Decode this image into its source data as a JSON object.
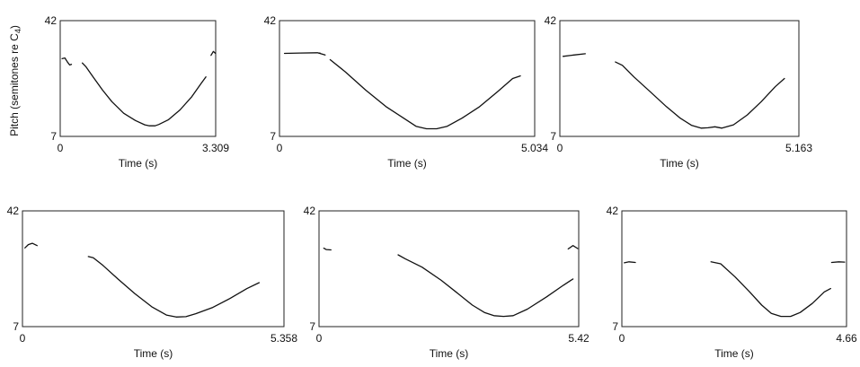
{
  "figure": {
    "ylabel": "Pitch (semitones re C",
    "ylabel_sub": "4",
    "ylabel_tail": ")"
  },
  "chart_data": [
    {
      "type": "line",
      "xlabel": "Time (s)",
      "xlim": [
        0,
        3.309
      ],
      "ylim": [
        7,
        42
      ],
      "x_ticks": [
        "0",
        "3.309"
      ],
      "y_ticks": [
        "7",
        "42"
      ],
      "series": [
        {
          "points": [
            [
              0.04,
              30.5
            ],
            [
              0.1,
              30.7
            ],
            [
              0.15,
              29.6
            ],
            [
              0.2,
              28.6
            ],
            [
              0.24,
              28.8
            ]
          ]
        },
        {
          "points": [
            [
              0.47,
              29.2
            ],
            [
              0.55,
              28.0
            ],
            [
              0.7,
              25.0
            ],
            [
              0.9,
              21.0
            ],
            [
              1.1,
              17.5
            ],
            [
              1.35,
              14.0
            ],
            [
              1.6,
              11.8
            ],
            [
              1.8,
              10.5
            ],
            [
              1.9,
              10.2
            ],
            [
              2.02,
              10.2
            ],
            [
              2.1,
              10.6
            ],
            [
              2.3,
              12.0
            ],
            [
              2.55,
              15.0
            ],
            [
              2.8,
              19.0
            ],
            [
              3.0,
              23.0
            ],
            [
              3.1,
              25.0
            ]
          ]
        },
        {
          "points": [
            [
              3.21,
              31.5
            ],
            [
              3.26,
              32.7
            ],
            [
              3.305,
              32.1
            ]
          ]
        }
      ]
    },
    {
      "type": "line",
      "xlabel": "Time (s)",
      "xlim": [
        0,
        5.034
      ],
      "ylim": [
        7,
        42
      ],
      "x_ticks": [
        "0",
        "5.034"
      ],
      "y_ticks": [
        "7",
        "42"
      ],
      "series": [
        {
          "points": [
            [
              0.1,
              32.1
            ],
            [
              0.4,
              32.2
            ],
            [
              0.75,
              32.3
            ],
            [
              0.9,
              31.6
            ]
          ]
        },
        {
          "points": [
            [
              1.0,
              30.2
            ],
            [
              1.3,
              26.5
            ],
            [
              1.7,
              21.0
            ],
            [
              2.1,
              16.0
            ],
            [
              2.45,
              12.5
            ],
            [
              2.7,
              10.0
            ],
            [
              2.9,
              9.3
            ],
            [
              3.1,
              9.3
            ],
            [
              3.3,
              10.0
            ],
            [
              3.6,
              12.5
            ],
            [
              3.95,
              16.0
            ],
            [
              4.3,
              20.5
            ],
            [
              4.6,
              24.5
            ],
            [
              4.75,
              25.3
            ]
          ]
        },
        {
          "points": [
            [
              0.78,
              32.2
            ],
            [
              0.8,
              32.2
            ]
          ]
        }
      ]
    },
    {
      "type": "line",
      "xlabel": "Time (s)",
      "xlim": [
        0,
        5.163
      ],
      "ylim": [
        7,
        42
      ],
      "x_ticks": [
        "0",
        "5.163"
      ],
      "y_ticks": [
        "7",
        "42"
      ],
      "series": [
        {
          "points": [
            [
              0.07,
              31.2
            ],
            [
              0.3,
              31.6
            ],
            [
              0.55,
              32.0
            ]
          ]
        },
        {
          "points": [
            [
              1.2,
              29.5
            ],
            [
              1.35,
              28.5
            ],
            [
              1.6,
              25.0
            ],
            [
              1.95,
              20.5
            ],
            [
              2.3,
              16.0
            ],
            [
              2.6,
              12.5
            ],
            [
              2.85,
              10.3
            ],
            [
              3.05,
              9.5
            ],
            [
              3.2,
              9.6
            ],
            [
              3.35,
              9.9
            ],
            [
              3.5,
              9.5
            ],
            [
              3.75,
              10.5
            ],
            [
              4.05,
              13.5
            ],
            [
              4.35,
              17.5
            ],
            [
              4.65,
              22.0
            ],
            [
              4.85,
              24.5
            ]
          ]
        }
      ]
    },
    {
      "type": "line",
      "xlabel": "Time (s)",
      "xlim": [
        0,
        5.358
      ],
      "ylim": [
        7,
        42
      ],
      "x_ticks": [
        "0",
        "5.358"
      ],
      "y_ticks": [
        "7",
        "42"
      ],
      "series": [
        {
          "points": [
            [
              0.05,
              30.8
            ],
            [
              0.12,
              31.8
            ],
            [
              0.2,
              32.2
            ],
            [
              0.3,
              31.5
            ]
          ]
        },
        {
          "points": [
            [
              1.35,
              28.2
            ],
            [
              1.45,
              27.8
            ],
            [
              1.65,
              25.5
            ],
            [
              1.95,
              21.5
            ],
            [
              2.3,
              17.0
            ],
            [
              2.65,
              13.0
            ],
            [
              2.95,
              10.5
            ],
            [
              3.15,
              9.9
            ],
            [
              3.35,
              10.0
            ],
            [
              3.55,
              10.9
            ],
            [
              3.9,
              12.8
            ],
            [
              4.25,
              15.5
            ],
            [
              4.6,
              18.5
            ],
            [
              4.85,
              20.3
            ]
          ]
        }
      ]
    },
    {
      "type": "line",
      "xlabel": "Time (s)",
      "xlim": [
        0,
        5.42
      ],
      "ylim": [
        7,
        42
      ],
      "x_ticks": [
        "0",
        "5.42"
      ],
      "y_ticks": [
        "7",
        "42"
      ],
      "series": [
        {
          "points": [
            [
              0.1,
              30.7
            ],
            [
              0.15,
              30.3
            ],
            [
              0.25,
              30.2
            ]
          ]
        },
        {
          "points": [
            [
              1.65,
              28.7
            ],
            [
              1.8,
              27.5
            ],
            [
              2.15,
              25.0
            ],
            [
              2.55,
              21.0
            ],
            [
              2.9,
              17.0
            ],
            [
              3.2,
              13.5
            ],
            [
              3.45,
              11.3
            ],
            [
              3.65,
              10.3
            ],
            [
              3.85,
              10.1
            ],
            [
              4.05,
              10.3
            ],
            [
              4.35,
              12.3
            ],
            [
              4.75,
              16.0
            ],
            [
              5.1,
              19.5
            ],
            [
              5.3,
              21.4
            ]
          ]
        },
        {
          "points": [
            [
              5.2,
              30.5
            ],
            [
              5.3,
              31.5
            ],
            [
              5.4,
              30.6
            ]
          ]
        }
      ]
    },
    {
      "type": "line",
      "xlabel": "Time (s)",
      "xlim": [
        0,
        4.66
      ],
      "ylim": [
        7,
        42
      ],
      "x_ticks": [
        "0",
        "4.66"
      ],
      "y_ticks": [
        "7",
        "42"
      ],
      "series": [
        {
          "points": [
            [
              0.05,
              26.3
            ],
            [
              0.15,
              26.6
            ],
            [
              0.28,
              26.4
            ]
          ]
        },
        {
          "points": [
            [
              1.85,
              26.6
            ],
            [
              2.05,
              26.0
            ],
            [
              2.35,
              22.0
            ],
            [
              2.65,
              17.5
            ],
            [
              2.9,
              13.5
            ],
            [
              3.1,
              11.0
            ],
            [
              3.3,
              10.1
            ],
            [
              3.5,
              10.1
            ],
            [
              3.7,
              11.3
            ],
            [
              3.95,
              14.0
            ],
            [
              4.2,
              17.5
            ],
            [
              4.33,
              18.5
            ]
          ]
        },
        {
          "points": [
            [
              4.35,
              26.4
            ],
            [
              4.5,
              26.6
            ],
            [
              4.62,
              26.5
            ]
          ]
        }
      ]
    }
  ]
}
